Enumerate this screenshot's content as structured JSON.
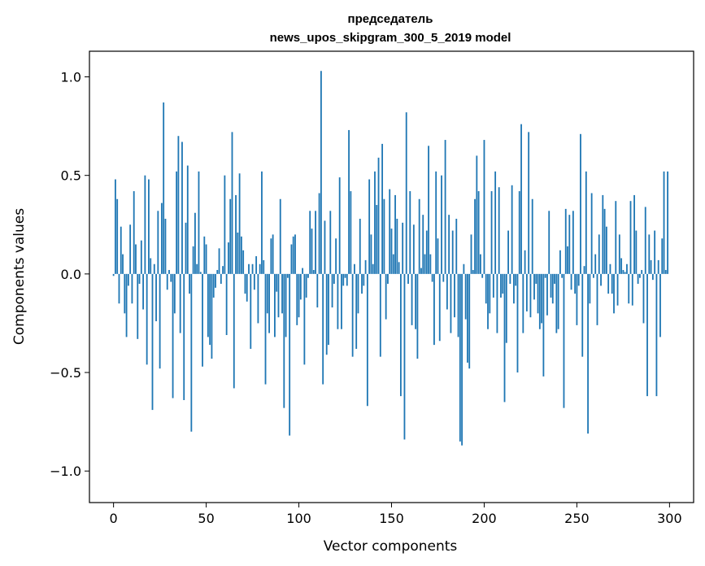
{
  "chart_data": {
    "type": "bar",
    "title_line1": "председатель",
    "title_line2": "news_upos_skipgram_300_5_2019 model",
    "xlabel": "Vector components",
    "ylabel": "Components values",
    "xlim": [
      -13,
      313
    ],
    "ylim": [
      -1.16,
      1.13
    ],
    "xticks": [
      0,
      50,
      100,
      150,
      200,
      250,
      300
    ],
    "yticks": [
      -1.0,
      -0.5,
      0.0,
      0.5,
      1.0
    ],
    "xtick_labels": [
      "0",
      "50",
      "100",
      "150",
      "200",
      "250",
      "300"
    ],
    "ytick_labels": [
      "−1.0",
      "−0.5",
      "0.0",
      "0.5",
      "1.0"
    ],
    "bar_color": "#1f77b4",
    "values": [
      -0.01,
      0.48,
      0.38,
      -0.15,
      0.24,
      0.1,
      -0.2,
      -0.32,
      -0.06,
      0.25,
      -0.15,
      0.42,
      0.15,
      -0.33,
      -0.05,
      0.17,
      -0.18,
      0.5,
      -0.46,
      0.48,
      0.08,
      -0.69,
      0.05,
      -0.24,
      0.32,
      -0.48,
      0.36,
      0.87,
      0.28,
      -0.08,
      0.02,
      -0.04,
      -0.63,
      -0.2,
      0.52,
      0.7,
      -0.3,
      0.67,
      -0.64,
      0.26,
      0.55,
      -0.1,
      -0.8,
      0.14,
      0.31,
      0.05,
      0.52,
      0.01,
      -0.47,
      0.19,
      0.15,
      -0.32,
      -0.36,
      -0.43,
      -0.12,
      -0.07,
      0.02,
      0.13,
      -0.05,
      0.04,
      0.5,
      -0.31,
      0.16,
      0.38,
      0.72,
      -0.58,
      0.4,
      0.21,
      0.51,
      0.19,
      0.12,
      -0.1,
      -0.14,
      0.05,
      -0.38,
      0.05,
      -0.08,
      0.09,
      -0.25,
      0.05,
      0.52,
      0.07,
      -0.56,
      -0.2,
      -0.3,
      0.18,
      0.2,
      -0.32,
      -0.09,
      -0.22,
      0.38,
      -0.2,
      -0.68,
      -0.32,
      -0.02,
      -0.82,
      0.15,
      0.19,
      0.2,
      -0.26,
      -0.22,
      -0.13,
      0.03,
      -0.46,
      -0.12,
      -0.02,
      0.32,
      0.23,
      0.02,
      0.32,
      -0.17,
      0.41,
      1.03,
      -0.56,
      0.27,
      -0.41,
      -0.36,
      0.32,
      -0.17,
      -0.05,
      0.18,
      -0.28,
      0.49,
      -0.28,
      -0.06,
      -0.02,
      -0.06,
      0.73,
      0.42,
      -0.42,
      0.05,
      -0.38,
      -0.2,
      0.28,
      -0.1,
      -0.06,
      0.07,
      -0.67,
      0.48,
      0.2,
      0.05,
      0.52,
      0.35,
      0.59,
      -0.42,
      0.66,
      0.38,
      -0.23,
      -0.05,
      0.43,
      0.23,
      0.1,
      0.4,
      0.28,
      0.06,
      -0.62,
      0.26,
      -0.84,
      0.82,
      -0.05,
      0.42,
      -0.26,
      0.25,
      -0.28,
      -0.43,
      0.38,
      0.03,
      0.3,
      0.1,
      0.22,
      0.65,
      0.1,
      -0.04,
      -0.36,
      0.52,
      0.18,
      -0.34,
      0.5,
      -0.04,
      0.68,
      -0.18,
      0.3,
      -0.3,
      0.22,
      -0.22,
      0.28,
      -0.32,
      -0.85,
      -0.87,
      0.05,
      -0.23,
      -0.45,
      -0.48,
      0.2,
      0.02,
      0.38,
      0.6,
      0.42,
      0.1,
      -0.02,
      0.68,
      -0.15,
      -0.28,
      -0.2,
      0.42,
      -0.12,
      0.52,
      -0.3,
      0.44,
      -0.12,
      -0.1,
      -0.65,
      -0.35,
      0.22,
      -0.05,
      0.45,
      -0.15,
      -0.06,
      -0.5,
      0.42,
      0.76,
      -0.3,
      0.12,
      -0.19,
      0.72,
      -0.22,
      0.38,
      -0.13,
      -0.05,
      -0.2,
      -0.28,
      -0.25,
      -0.52,
      -0.02,
      -0.21,
      0.32,
      -0.12,
      -0.15,
      -0.05,
      -0.3,
      -0.28,
      0.12,
      -0.02,
      -0.68,
      0.33,
      0.14,
      0.3,
      -0.08,
      0.32,
      -0.1,
      -0.26,
      -0.06,
      0.71,
      -0.42,
      0.04,
      0.52,
      -0.81,
      -0.15,
      0.41,
      -0.02,
      0.1,
      -0.26,
      0.2,
      -0.06,
      0.4,
      0.33,
      0.24,
      -0.1,
      0.05,
      -0.1,
      -0.2,
      0.37,
      -0.16,
      0.2,
      0.08,
      0.02,
      0.01,
      0.05,
      -0.15,
      0.37,
      -0.16,
      0.4,
      0.22,
      -0.05,
      -0.02,
      0.02,
      -0.25,
      0.34,
      -0.62,
      0.2,
      0.07,
      -0.03,
      0.22,
      -0.62,
      0.07,
      -0.32,
      0.18,
      0.52,
      0.02,
      0.52
    ]
  }
}
